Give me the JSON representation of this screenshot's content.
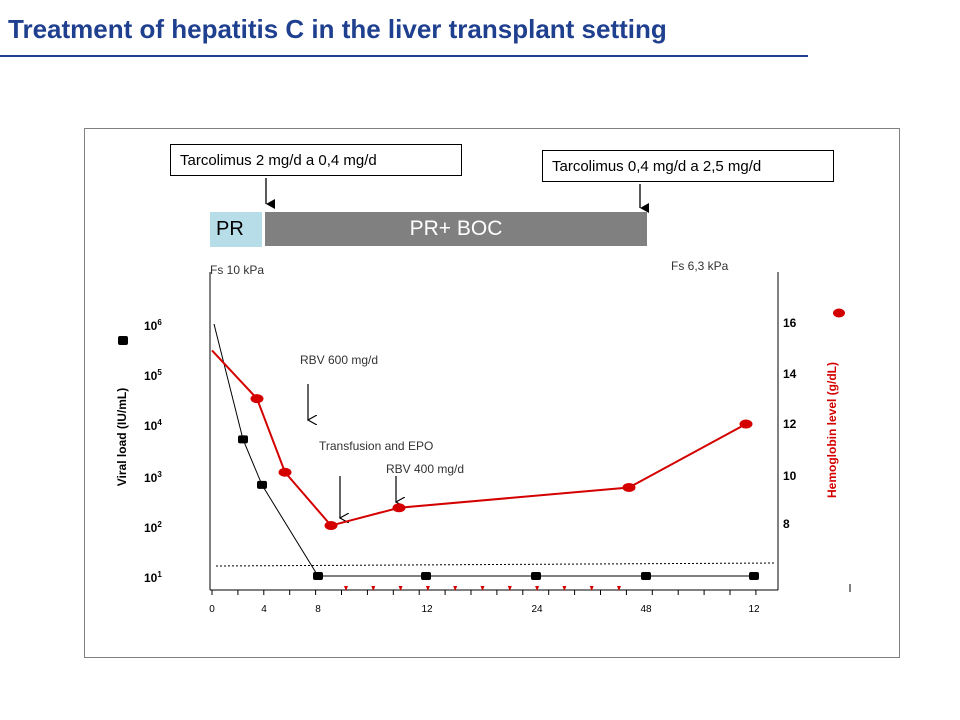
{
  "title": "Treatment of hepatitis C in the liver transplant setting",
  "colors": {
    "title": "#1f3f8f",
    "hemoglobin": "#d40000",
    "viral": "#000000",
    "pr_bar": "#b7dde8",
    "boc_bar": "#808080"
  },
  "tacrolimus_boxes": [
    "Tarcolimus 2 mg/d a 0,4 mg/d",
    "Tarcolimus 0,4 mg/d a 2,5 mg/d"
  ],
  "bars": {
    "pr": "PR",
    "boc": "PR+ BOC"
  },
  "chart_data": {
    "type": "line",
    "y_left_label": "Viral load (IU/mL)",
    "y_right_label": "Hemoglobin level (g/dL)",
    "x_ticks": [
      "0",
      "4",
      "8",
      "12",
      "24",
      "48",
      "12"
    ],
    "y_left_ticks": [
      {
        "base": "10",
        "exp": "6"
      },
      {
        "base": "10",
        "exp": "5"
      },
      {
        "base": "10",
        "exp": "4"
      },
      {
        "base": "10",
        "exp": "3"
      },
      {
        "base": "10",
        "exp": "2"
      },
      {
        "base": "10",
        "exp": "1"
      }
    ],
    "y_right_ticks": [
      "16",
      "14",
      "12",
      "10",
      "8"
    ],
    "legend": [
      "viral-load-marker",
      "hemoglobin-marker"
    ],
    "series": [
      {
        "name": "Viral load (IU/mL)",
        "color": "#000000",
        "x": [
          0,
          2,
          4,
          8,
          12,
          24,
          48,
          12
        ],
        "log10": [
          5.8,
          3.7,
          2.8,
          1.0,
          1.0,
          1.0,
          1.0,
          1.0
        ]
      },
      {
        "name": "Hemoglobin level (g/dL)",
        "color": "#d40000",
        "x": [
          0,
          3,
          5,
          8,
          12,
          48,
          12
        ],
        "values": [
          14.8,
          12.9,
          10.0,
          7.9,
          8.6,
          9.4,
          11.9
        ]
      }
    ],
    "detection_limit": "dashed",
    "annotations": [
      "Fs 10 kPa",
      "Fs 6,3 kPa",
      "RBV 600 mg/d",
      "Transfusion and EPO",
      "RBV 400 mg/d"
    ]
  }
}
